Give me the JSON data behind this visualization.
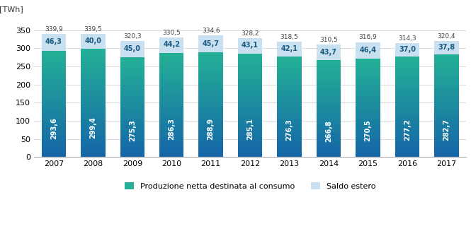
{
  "years": [
    2007,
    2008,
    2009,
    2010,
    2011,
    2012,
    2013,
    2014,
    2015,
    2016,
    2017
  ],
  "produzione": [
    293.6,
    299.4,
    275.3,
    286.3,
    288.9,
    285.1,
    276.3,
    266.8,
    270.5,
    277.2,
    282.7
  ],
  "saldo": [
    46.3,
    40.0,
    45.0,
    44.2,
    45.7,
    43.1,
    42.1,
    43.7,
    46.4,
    37.0,
    37.8
  ],
  "produzione_labels": [
    "293,6",
    "299,4",
    "275,3",
    "286,3",
    "288,9",
    "285,1",
    "276,3",
    "266,8",
    "270,5",
    "277,2",
    "282,7"
  ],
  "saldo_labels": [
    "46,3",
    "40,0",
    "45,0",
    "44,2",
    "45,7",
    "43,1",
    "42,1",
    "43,7",
    "46,4",
    "37,0",
    "37,8"
  ],
  "total_labels": [
    "339,9",
    "339,5",
    "320,3",
    "330,5",
    "334,6",
    "328,2",
    "318,5",
    "310,5",
    "316,9",
    "314,3",
    "320,4"
  ],
  "saldo_color": "#c8e0ef",
  "ylabel": "[TWh]",
  "ylim": [
    0,
    390
  ],
  "yticks": [
    0,
    50,
    100,
    150,
    200,
    250,
    300,
    350
  ],
  "legend_produzione": "Produzione netta destinata al consumo",
  "legend_saldo": "Saldo estero",
  "bar_width": 0.62,
  "produzione_color_top": "#23b096",
  "produzione_color_bottom": "#1565a8"
}
